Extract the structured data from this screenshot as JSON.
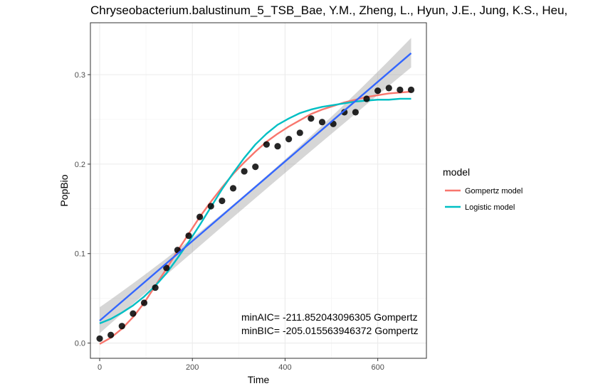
{
  "chart_data": {
    "type": "scatter",
    "title": "Chryseobacterium.balustinum_5_TSB_Bae, Y.M., Zheng, L., Hyun, J.E., Jung, K.S., Heu,",
    "xlabel": "Time",
    "ylabel": "PopBio",
    "xlim": [
      -20,
      705
    ],
    "ylim": [
      -0.017,
      0.358
    ],
    "x_ticks": [
      0,
      200,
      400,
      600
    ],
    "y_ticks": [
      0.0,
      0.1,
      0.2,
      0.3
    ],
    "x_tick_labels": [
      "0",
      "200",
      "400",
      "600"
    ],
    "y_tick_labels": [
      "0.0",
      "0.1",
      "0.2",
      "0.3"
    ],
    "grid": true,
    "legend_position": "right",
    "legend": {
      "title": "model",
      "entries": [
        {
          "label": "Gompertz model",
          "color": "#F8766D"
        },
        {
          "label": "Logistic model",
          "color": "#00BFC4"
        }
      ]
    },
    "points": {
      "color": "#000000",
      "x": [
        0,
        24,
        48,
        72,
        96,
        120,
        144,
        168,
        192,
        216,
        240,
        264,
        288,
        312,
        336,
        360,
        384,
        408,
        432,
        456,
        480,
        504,
        528,
        552,
        576,
        600,
        624,
        648,
        672
      ],
      "y": [
        0.005,
        0.009,
        0.019,
        0.033,
        0.045,
        0.062,
        0.084,
        0.104,
        0.12,
        0.141,
        0.153,
        0.159,
        0.173,
        0.192,
        0.197,
        0.222,
        0.22,
        0.228,
        0.235,
        0.251,
        0.247,
        0.245,
        0.258,
        0.258,
        0.273,
        0.282,
        0.285,
        0.283,
        0.283
      ]
    },
    "series": [
      {
        "name": "Gompertz model",
        "color": "#F8766D",
        "x": [
          0,
          24,
          48,
          72,
          96,
          120,
          144,
          168,
          192,
          216,
          240,
          264,
          288,
          312,
          336,
          360,
          384,
          408,
          432,
          456,
          480,
          504,
          528,
          552,
          576,
          600,
          624,
          648,
          672
        ],
        "y": [
          -0.001,
          0.006,
          0.016,
          0.029,
          0.045,
          0.064,
          0.083,
          0.103,
          0.122,
          0.141,
          0.158,
          0.174,
          0.189,
          0.202,
          0.214,
          0.225,
          0.234,
          0.242,
          0.249,
          0.256,
          0.261,
          0.265,
          0.269,
          0.272,
          0.275,
          0.277,
          0.279,
          0.28,
          0.281
        ]
      },
      {
        "name": "Logistic model",
        "color": "#00BFC4",
        "x": [
          0,
          24,
          48,
          72,
          96,
          120,
          144,
          168,
          192,
          216,
          240,
          264,
          288,
          312,
          336,
          360,
          384,
          408,
          432,
          456,
          480,
          504,
          528,
          552,
          576,
          600,
          624,
          648,
          672
        ],
        "y": [
          0.022,
          0.027,
          0.034,
          0.042,
          0.052,
          0.064,
          0.078,
          0.095,
          0.113,
          0.132,
          0.152,
          0.172,
          0.19,
          0.207,
          0.222,
          0.234,
          0.244,
          0.251,
          0.257,
          0.261,
          0.264,
          0.266,
          0.268,
          0.27,
          0.271,
          0.272,
          0.272,
          0.273,
          0.273
        ]
      }
    ],
    "linear_fit": {
      "color": "#3366FF",
      "band_color": "#999999",
      "x": [
        0,
        672
      ],
      "y": [
        0.025,
        0.324
      ],
      "ci_lower": [
        0.011,
        0.308
      ],
      "ci_upper": [
        0.04,
        0.341
      ],
      "ci_mid_lower": 0.162,
      "ci_mid_upper": 0.176,
      "ci_mid_x": 336
    },
    "annotations": [
      "minAIC= -211.852043096305   Gompertz",
      "minBIC= -205.015563946372   Gompertz"
    ]
  }
}
